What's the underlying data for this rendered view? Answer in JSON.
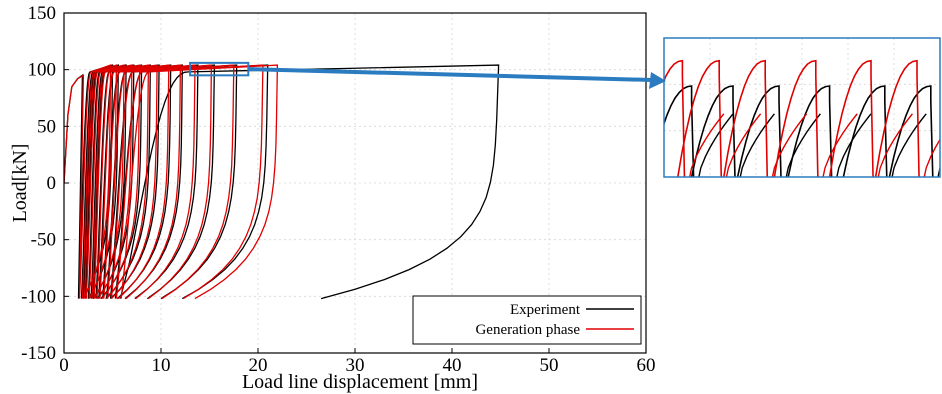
{
  "chart_data": [
    {
      "type": "line",
      "title": "",
      "xlabel": "Load line displacement [mm]",
      "ylabel": "Load[kN]",
      "xlim": [
        0,
        60
      ],
      "ylim": [
        -150,
        150
      ],
      "xticks": [
        "0",
        "10",
        "20",
        "30",
        "40",
        "50",
        "60"
      ],
      "yticks": [
        "150",
        "100",
        "50",
        "0",
        "-50",
        "-100",
        "-150"
      ],
      "grid": true,
      "legend_position": "bottom-right",
      "colors": {
        "Experiment": "#000000",
        "Generation phase": "#e00000",
        "highlight": "#2a7bc0"
      },
      "series": [
        {
          "name": "Experiment",
          "cycles": [
            {
              "xmin": 1.5,
              "xmax": 5.0,
              "xr": 1.9
            },
            {
              "xmin": 1.8,
              "xmax": 5.6,
              "xr": 2.5
            },
            {
              "xmin": 2.0,
              "xmax": 6.4,
              "xr": 3.0
            },
            {
              "xmin": 2.2,
              "xmax": 7.2,
              "xr": 3.4
            },
            {
              "xmin": 2.5,
              "xmax": 8.0,
              "xr": 3.8
            },
            {
              "xmin": 2.8,
              "xmax": 8.9,
              "xr": 4.3
            },
            {
              "xmin": 3.0,
              "xmax": 9.8,
              "xr": 4.8
            },
            {
              "xmin": 3.3,
              "xmax": 11.0,
              "xr": 5.5
            },
            {
              "xmin": 3.6,
              "xmax": 12.2,
              "xr": 6.3
            },
            {
              "xmin": 4.0,
              "xmax": 13.8,
              "xr": 7.3
            },
            {
              "xmin": 4.4,
              "xmax": 15.5,
              "xr": 8.6
            },
            {
              "xmin": 4.8,
              "xmax": 17.8,
              "xr": 10.0
            },
            {
              "xmin": 5.3,
              "xmax": 21.0,
              "xr": 12.2
            },
            {
              "xmin": 5.8,
              "xmax": 44.8,
              "xr": 26.5
            }
          ]
        },
        {
          "name": "Generation phase",
          "cycles": [
            {
              "xmin": 1.6,
              "xmax": 4.8,
              "xr": 2.0
            },
            {
              "xmin": 1.9,
              "xmax": 5.4,
              "xr": 2.6
            },
            {
              "xmin": 2.1,
              "xmax": 6.2,
              "xr": 3.1
            },
            {
              "xmin": 2.3,
              "xmax": 7.0,
              "xr": 3.5
            },
            {
              "xmin": 2.6,
              "xmax": 7.8,
              "xr": 3.9
            },
            {
              "xmin": 2.9,
              "xmax": 8.7,
              "xr": 4.4
            },
            {
              "xmin": 3.1,
              "xmax": 9.6,
              "xr": 4.9
            },
            {
              "xmin": 3.4,
              "xmax": 10.8,
              "xr": 5.6
            },
            {
              "xmin": 3.7,
              "xmax": 12.0,
              "xr": 6.4
            },
            {
              "xmin": 4.1,
              "xmax": 13.5,
              "xr": 7.4
            },
            {
              "xmin": 4.5,
              "xmax": 15.2,
              "xr": 8.7
            },
            {
              "xmin": 4.9,
              "xmax": 17.5,
              "xr": 10.1
            },
            {
              "xmin": 5.4,
              "xmax": 20.5,
              "xr": 12.3
            },
            {
              "xmin": 5.9,
              "xmax": 22.0,
              "xr": 13.5
            }
          ]
        }
      ]
    },
    {
      "type": "line",
      "title": "",
      "description_of_view": "zoomed inset of the highlighted region near the load peaks",
      "xlim": [
        13,
        19
      ],
      "ylim": [
        95,
        106
      ],
      "series": [
        {
          "name": "Experiment",
          "peaks": [
            13.6,
            14.5,
            15.5,
            16.6,
            17.8,
            18.8
          ]
        },
        {
          "name": "Generation phase",
          "peaks": [
            13.4,
            14.2,
            15.2,
            16.3,
            17.5,
            18.5
          ]
        }
      ]
    }
  ]
}
